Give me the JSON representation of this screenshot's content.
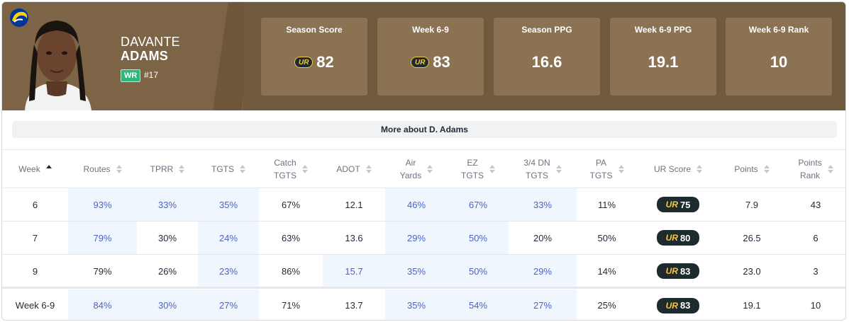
{
  "player": {
    "first_name": "DAVANTE",
    "last_name": "ADAMS",
    "position": "WR",
    "jersey": "#17",
    "team_logo_icon": "rams-logo-icon"
  },
  "stats": [
    {
      "label": "Season Score",
      "value": "82",
      "ur_badge": true
    },
    {
      "label": "Week 6-9",
      "value": "83",
      "ur_badge": true
    },
    {
      "label": "Season PPG",
      "value": "16.6",
      "ur_badge": false
    },
    {
      "label": "Week 6-9 PPG",
      "value": "19.1",
      "ur_badge": false
    },
    {
      "label": "Week 6-9 Rank",
      "value": "10",
      "ur_badge": false
    }
  ],
  "ur_mark": "UR",
  "more_button": "More about D. Adams",
  "columns": [
    {
      "line1": "Week",
      "line2": "",
      "sorted": "asc"
    },
    {
      "line1": "Routes",
      "line2": ""
    },
    {
      "line1": "TPRR",
      "line2": ""
    },
    {
      "line1": "TGTS",
      "line2": ""
    },
    {
      "line1": "Catch",
      "line2": "TGTS"
    },
    {
      "line1": "ADOT",
      "line2": ""
    },
    {
      "line1": "Air",
      "line2": "Yards"
    },
    {
      "line1": "EZ",
      "line2": "TGTS"
    },
    {
      "line1": "3/4 DN",
      "line2": "TGTS"
    },
    {
      "line1": "PA",
      "line2": "TGTS"
    },
    {
      "line1": "UR Score",
      "line2": ""
    },
    {
      "line1": "Points",
      "line2": ""
    },
    {
      "line1": "Points",
      "line2": "Rank"
    }
  ],
  "rows": [
    {
      "cells": [
        "6",
        "93%",
        "33%",
        "35%",
        "67%",
        "12.1",
        "46%",
        "67%",
        "33%",
        "11%",
        "75",
        "7.9",
        "43"
      ],
      "highlight": [
        false,
        true,
        true,
        true,
        false,
        false,
        true,
        true,
        true,
        false,
        false,
        false,
        false
      ]
    },
    {
      "cells": [
        "7",
        "79%",
        "30%",
        "24%",
        "63%",
        "13.6",
        "29%",
        "50%",
        "20%",
        "50%",
        "80",
        "26.5",
        "6"
      ],
      "highlight": [
        false,
        true,
        false,
        true,
        false,
        false,
        true,
        true,
        false,
        false,
        false,
        false,
        false
      ]
    },
    {
      "cells": [
        "9",
        "79%",
        "26%",
        "23%",
        "86%",
        "15.7",
        "35%",
        "50%",
        "29%",
        "14%",
        "83",
        "23.0",
        "3"
      ],
      "highlight": [
        false,
        false,
        false,
        true,
        false,
        true,
        true,
        true,
        true,
        false,
        false,
        false,
        false
      ]
    }
  ],
  "total_row": {
    "cells": [
      "Week 6-9",
      "84%",
      "30%",
      "27%",
      "71%",
      "13.7",
      "35%",
      "54%",
      "27%",
      "25%",
      "83",
      "19.1",
      "10"
    ],
    "highlight": [
      false,
      true,
      true,
      true,
      false,
      false,
      true,
      true,
      true,
      false,
      false,
      false,
      false
    ]
  },
  "colors": {
    "header_bg": "#7a6141",
    "stat_box_bg": "#8b7252",
    "position_badge": "#2fb67a",
    "highlight_bg": "#f0f6fd",
    "highlight_text": "#4a63c9",
    "ur_pill_bg": "#1d2a2e",
    "ur_accent": "#f5c842"
  }
}
